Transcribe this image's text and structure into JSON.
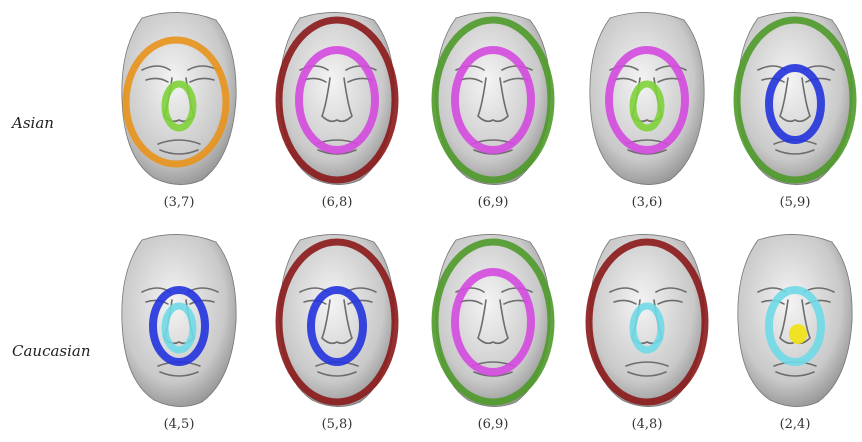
{
  "rows": [
    {
      "label": "Asian",
      "cells": [
        {
          "caption": "(3,7)",
          "rings": [
            {
              "color": "#e8921a",
              "size": "large"
            },
            {
              "color": "#7fd23a",
              "size": "nose"
            }
          ]
        },
        {
          "caption": "(6,8)",
          "rings": [
            {
              "color": "#8b1a1a",
              "size": "outer"
            },
            {
              "color": "#d44adf",
              "size": "mid"
            }
          ]
        },
        {
          "caption": "(6,9)",
          "rings": [
            {
              "color": "#4f9a2a",
              "size": "outer"
            },
            {
              "color": "#d44adf",
              "size": "mid"
            }
          ]
        },
        {
          "caption": "(3,6)",
          "rings": [
            {
              "color": "#d44adf",
              "size": "mid"
            },
            {
              "color": "#7fd23a",
              "size": "nose"
            }
          ]
        },
        {
          "caption": "(5,9)",
          "rings": [
            {
              "color": "#4f9a2a",
              "size": "outer"
            },
            {
              "color": "#2233dd",
              "size": "small"
            }
          ]
        }
      ]
    },
    {
      "label": "Caucasian",
      "cells": [
        {
          "caption": "(4,5)",
          "rings": [
            {
              "color": "#2233dd",
              "size": "small"
            },
            {
              "color": "#6fd9e6",
              "size": "nose"
            }
          ]
        },
        {
          "caption": "(5,8)",
          "rings": [
            {
              "color": "#8b1a1a",
              "size": "outer"
            },
            {
              "color": "#2233dd",
              "size": "small"
            }
          ]
        },
        {
          "caption": "(6,9)",
          "rings": [
            {
              "color": "#4f9a2a",
              "size": "outer"
            },
            {
              "color": "#d44adf",
              "size": "mid"
            }
          ]
        },
        {
          "caption": "(4,8)",
          "rings": [
            {
              "color": "#8b1a1a",
              "size": "outer"
            },
            {
              "color": "#6fd9e6",
              "size": "nose"
            }
          ]
        },
        {
          "caption": "(2,4)",
          "rings": [
            {
              "color": "#6fd9e6",
              "size": "small"
            },
            {
              "color": "#f2e21a",
              "size": "tip"
            }
          ]
        }
      ]
    }
  ]
}
